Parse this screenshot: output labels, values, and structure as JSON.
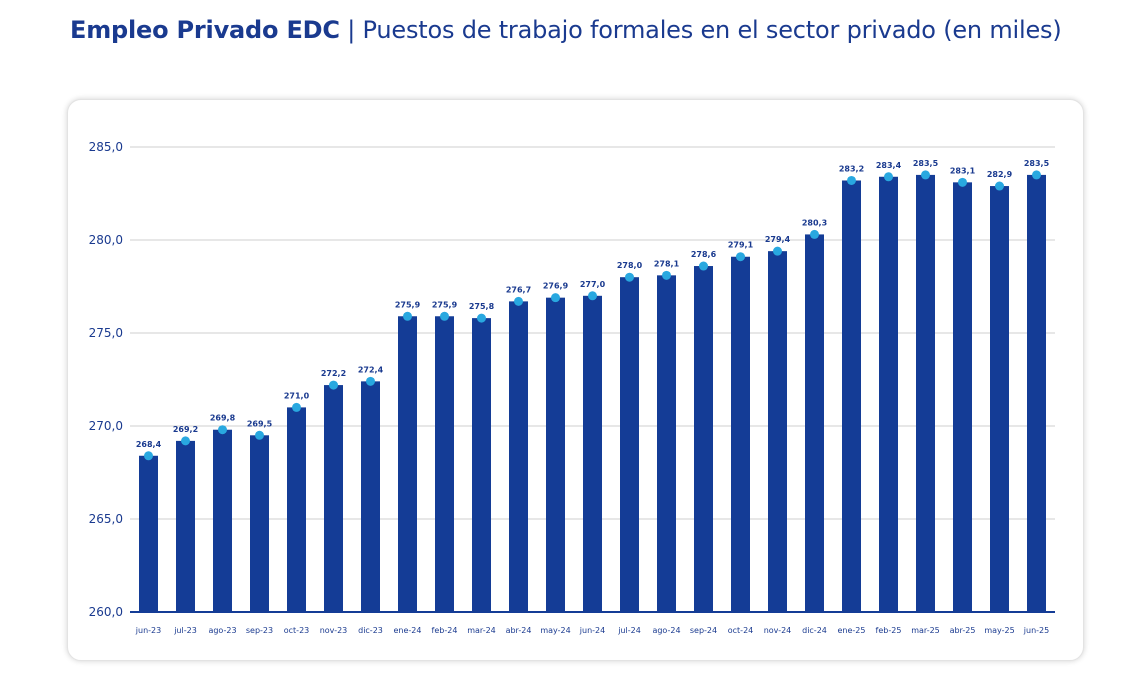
{
  "header": {
    "title_bold": "Empleo Privado EDC",
    "separator": " | ",
    "title_rest": "Puestos de trabajo formales en el sector privado (en miles)"
  },
  "chart_data": {
    "type": "bar",
    "title": "Empleo Privado EDC | Puestos de trabajo formales en el sector privado (en miles)",
    "categories": [
      "jun-23",
      "jul-23",
      "ago-23",
      "sep-23",
      "oct-23",
      "nov-23",
      "dic-23",
      "ene-24",
      "feb-24",
      "mar-24",
      "abr-24",
      "may-24",
      "jun-24",
      "jul-24",
      "ago-24",
      "sep-24",
      "oct-24",
      "nov-24",
      "dic-24",
      "ene-25",
      "feb-25",
      "mar-25",
      "abr-25",
      "may-25",
      "jun-25"
    ],
    "values": [
      268.4,
      269.2,
      269.8,
      269.5,
      271.0,
      272.2,
      272.4,
      275.9,
      275.9,
      275.8,
      276.7,
      276.9,
      277.0,
      278.0,
      278.1,
      278.6,
      279.1,
      279.4,
      280.3,
      283.2,
      283.4,
      283.5,
      283.1,
      282.9,
      283.5
    ],
    "value_labels": [
      "268,4",
      "269,2",
      "269,8",
      "269,5",
      "271,0",
      "272,2",
      "272,4",
      "275,9",
      "275,9",
      "275,8",
      "276,7",
      "276,9",
      "277,0",
      "278,0",
      "278,1",
      "278,6",
      "279,1",
      "279,4",
      "280,3",
      "283,2",
      "283,4",
      "283,5",
      "283,1",
      "282,9",
      "283,5"
    ],
    "yticks": [
      260,
      265,
      270,
      275,
      280,
      285
    ],
    "ytick_labels": [
      "260,0",
      "265,0",
      "270,0",
      "275,0",
      "280,0",
      "285,0"
    ],
    "ylim": [
      260,
      285
    ],
    "grid": true,
    "xlabel": "",
    "ylabel": "",
    "colors": {
      "bar": "#143c96",
      "marker": "#29a8e0",
      "text": "#1a3a8f",
      "grid": "#cfcfcf",
      "axis": "#143c96"
    }
  }
}
